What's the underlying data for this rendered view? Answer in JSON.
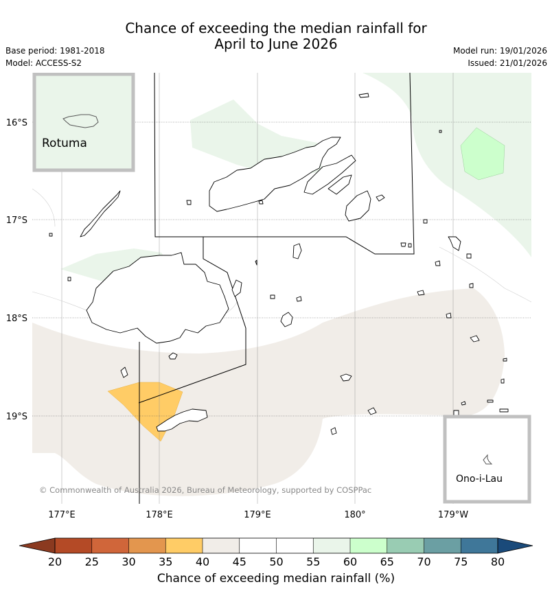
{
  "header": {
    "title_line1": "Chance of exceeding the median rainfall for",
    "title_line2": "April to June 2026",
    "base_period": "Base period: 1981-2018",
    "model": "Model: ACCESS-S2",
    "model_run": "Model run: 19/01/2026",
    "issued": "Issued: 21/01/2026"
  },
  "map": {
    "latitude_labels": [
      "16°S",
      "17°S",
      "18°S",
      "19°S"
    ],
    "longitude_labels": [
      "177°E",
      "178°E",
      "179°E",
      "180°",
      "179°W"
    ],
    "inset_rotuma": "Rotuma",
    "inset_onoilau": "Ono-i-Lau",
    "copyright": "© Commonwealth of Australia 2026, Bureau of Meteorology, supported by COSPPac",
    "colors": {
      "band_40_45": "#f1ede8",
      "band_35_40": "#ffcc66",
      "band_55_60": "#eaf5ea",
      "band_60_65": "#ccffcc"
    }
  },
  "colorbar": {
    "label": "Chance of exceeding median rainfall (%)",
    "ticks": [
      "20",
      "25",
      "30",
      "35",
      "40",
      "45",
      "50",
      "55",
      "60",
      "65",
      "70",
      "75",
      "80"
    ],
    "colors": [
      "#8b3a20",
      "#b44a26",
      "#d0663a",
      "#e3964e",
      "#ffcc66",
      "#f1ede8",
      "#ffffff",
      "#ffffff",
      "#eaf5ea",
      "#ccffcc",
      "#99ccb3",
      "#6b9fa3",
      "#3f7799",
      "#1a4a7a"
    ]
  }
}
